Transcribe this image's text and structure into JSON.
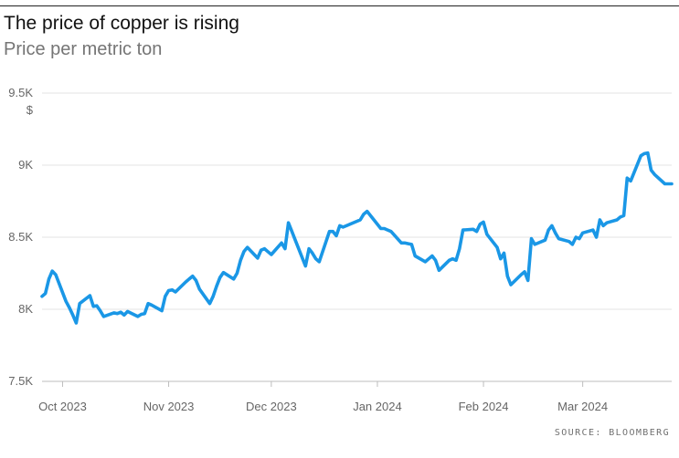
{
  "title": "The price of copper is rising",
  "subtitle": "Price per metric ton",
  "source": "SOURCE: BLOOMBERG",
  "chart_data": {
    "type": "line",
    "title": "The price of copper is rising",
    "subtitle": "Price per metric ton",
    "ylabel": "$",
    "ylim": [
      7500,
      9500
    ],
    "y_ticks": [
      {
        "value": 9500,
        "label": "9.5K"
      },
      {
        "value": 9000,
        "label": "9K"
      },
      {
        "value": 8500,
        "label": "8.5K"
      },
      {
        "value": 8000,
        "label": "8K"
      },
      {
        "value": 7500,
        "label": "7.5K"
      }
    ],
    "xlim": [
      "2023-09-25",
      "2024-03-27"
    ],
    "x_ticks": [
      {
        "date": "2023-10-01",
        "label": "Oct 2023"
      },
      {
        "date": "2023-11-01",
        "label": "Nov 2023"
      },
      {
        "date": "2023-12-01",
        "label": "Dec 2023"
      },
      {
        "date": "2024-01-01",
        "label": "Jan 2024"
      },
      {
        "date": "2024-02-01",
        "label": "Feb 2024"
      },
      {
        "date": "2024-03-01",
        "label": "Mar 2024"
      }
    ],
    "grid": true,
    "line_color": "#1a97e6",
    "series": [
      {
        "x": [
          "2023-09-25",
          "2023-09-26",
          "2023-09-27",
          "2023-09-28",
          "2023-09-29",
          "2023-10-02",
          "2023-10-03",
          "2023-10-04",
          "2023-10-05",
          "2023-10-06",
          "2023-10-09",
          "2023-10-10",
          "2023-10-11",
          "2023-10-12",
          "2023-10-13",
          "2023-10-16",
          "2023-10-17",
          "2023-10-18",
          "2023-10-19",
          "2023-10-20",
          "2023-10-23",
          "2023-10-24",
          "2023-10-25",
          "2023-10-26",
          "2023-10-27",
          "2023-10-30",
          "2023-10-31",
          "2023-11-01",
          "2023-11-02",
          "2023-11-03",
          "2023-11-06",
          "2023-11-07",
          "2023-11-08",
          "2023-11-09",
          "2023-11-10",
          "2023-11-13",
          "2023-11-14",
          "2023-11-15",
          "2023-11-16",
          "2023-11-17",
          "2023-11-20",
          "2023-11-21",
          "2023-11-22",
          "2023-11-23",
          "2023-11-24",
          "2023-11-27",
          "2023-11-28",
          "2023-11-29",
          "2023-11-30",
          "2023-12-01",
          "2023-12-04",
          "2023-12-05",
          "2023-12-06",
          "2023-12-07",
          "2023-12-08",
          "2023-12-11",
          "2023-12-12",
          "2023-12-13",
          "2023-12-14",
          "2023-12-15",
          "2023-12-18",
          "2023-12-19",
          "2023-12-20",
          "2023-12-21",
          "2023-12-22",
          "2023-12-27",
          "2023-12-28",
          "2023-12-29",
          "2024-01-02",
          "2024-01-03",
          "2024-01-04",
          "2024-01-05",
          "2024-01-08",
          "2024-01-09",
          "2024-01-10",
          "2024-01-11",
          "2024-01-12",
          "2024-01-15",
          "2024-01-16",
          "2024-01-17",
          "2024-01-18",
          "2024-01-19",
          "2024-01-22",
          "2024-01-23",
          "2024-01-24",
          "2024-01-25",
          "2024-01-26",
          "2024-01-29",
          "2024-01-30",
          "2024-01-31",
          "2024-02-01",
          "2024-02-02",
          "2024-02-05",
          "2024-02-06",
          "2024-02-07",
          "2024-02-08",
          "2024-02-09",
          "2024-02-12",
          "2024-02-13",
          "2024-02-14",
          "2024-02-15",
          "2024-02-16",
          "2024-02-19",
          "2024-02-20",
          "2024-02-21",
          "2024-02-22",
          "2024-02-23",
          "2024-02-26",
          "2024-02-27",
          "2024-02-28",
          "2024-02-29",
          "2024-03-01",
          "2024-03-04",
          "2024-03-05",
          "2024-03-06",
          "2024-03-07",
          "2024-03-08",
          "2024-03-11",
          "2024-03-12",
          "2024-03-13",
          "2024-03-14",
          "2024-03-15",
          "2024-03-18",
          "2024-03-19",
          "2024-03-20",
          "2024-03-21",
          "2024-03-22",
          "2024-03-25",
          "2024-03-26",
          "2024-03-27"
        ],
        "y": [
          8090,
          8110,
          8210,
          8265,
          8240,
          8055,
          8010,
          7960,
          7905,
          8040,
          8095,
          8020,
          8025,
          7990,
          7950,
          7975,
          7970,
          7980,
          7960,
          7985,
          7950,
          7965,
          7970,
          8040,
          8030,
          7990,
          8090,
          8130,
          8135,
          8120,
          8190,
          8210,
          8230,
          8200,
          8140,
          8040,
          8090,
          8160,
          8220,
          8255,
          8210,
          8250,
          8340,
          8400,
          8430,
          8355,
          8410,
          8420,
          8400,
          8380,
          8460,
          8420,
          8600,
          8540,
          8480,
          8300,
          8420,
          8390,
          8350,
          8330,
          8540,
          8540,
          8510,
          8580,
          8570,
          8620,
          8660,
          8680,
          8560,
          8560,
          8550,
          8540,
          8460,
          8460,
          8455,
          8450,
          8370,
          8330,
          8350,
          8370,
          8340,
          8270,
          8340,
          8350,
          8340,
          8420,
          8550,
          8555,
          8540,
          8590,
          8605,
          8520,
          8430,
          8350,
          8390,
          8230,
          8170,
          8240,
          8260,
          8200,
          8490,
          8450,
          8480,
          8550,
          8580,
          8530,
          8490,
          8470,
          8450,
          8500,
          8490,
          8530,
          8550,
          8500,
          8620,
          8580,
          8600,
          8620,
          8640,
          8650,
          8910,
          8890,
          9065,
          9080,
          9085,
          8965,
          8935,
          8870,
          8870,
          8870
        ],
        "values": [
          8090,
          8110,
          8210,
          8265,
          8240,
          8055,
          8010,
          7960,
          7905,
          8040,
          8095,
          8020,
          8025,
          7990,
          7950,
          7975,
          7970,
          7980,
          7960,
          7985,
          7950,
          7965,
          7970,
          8040,
          8030,
          7990,
          8090,
          8130,
          8135,
          8120,
          8190,
          8210,
          8230,
          8200,
          8140,
          8040,
          8090,
          8160,
          8220,
          8255,
          8210,
          8250,
          8340,
          8400,
          8430,
          8355,
          8410,
          8420,
          8400,
          8380,
          8460,
          8420,
          8600,
          8540,
          8480,
          8300,
          8420,
          8390,
          8350,
          8330,
          8540,
          8540,
          8510,
          8580,
          8570,
          8620,
          8660,
          8680,
          8560,
          8560,
          8550,
          8540,
          8460,
          8460,
          8455,
          8450,
          8370,
          8330,
          8350,
          8370,
          8340,
          8270,
          8340,
          8350,
          8340,
          8420,
          8550,
          8555,
          8540,
          8590,
          8605,
          8520,
          8430,
          8350,
          8390,
          8230,
          8170,
          8240,
          8260,
          8200,
          8490,
          8450,
          8480,
          8550,
          8580,
          8530,
          8490,
          8470,
          8450,
          8500,
          8490,
          8530,
          8550,
          8500,
          8620,
          8580,
          8600,
          8620,
          8640,
          8650,
          8910,
          8890,
          9065,
          9080,
          9085,
          8965,
          8935,
          8870,
          8870,
          8870
        ]
      }
    ]
  }
}
